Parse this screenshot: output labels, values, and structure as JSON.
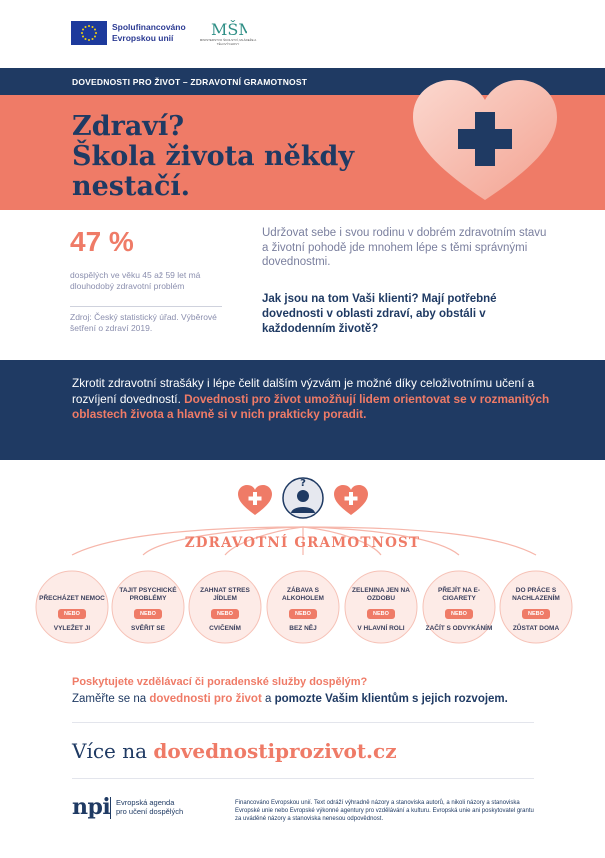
{
  "header": {
    "eu_line1": "Spolufinancováno",
    "eu_line2": "Evropskou unií",
    "msmt_text": "MŠMT",
    "msmt_subtitle": "MINISTERSTVO ŠKOLSTVÍ, MLÁDEŽE A TĚLOVÝCHOVY",
    "band_title": "DOVEDNOSTI PRO ŽIVOT – ZDRAVOTNÍ GRAMOTNOST"
  },
  "hero": {
    "title_line1": "Zdraví?",
    "title_line2": "Škola života někdy",
    "title_line3": "nestačí."
  },
  "stats": {
    "value": "47 %",
    "description": "dospělých ve věku 45 až 59 let má dlouhodobý zdravotní problém",
    "source": "Zdroj: Český statistický úřad. Výběrové šetření o zdraví 2019.",
    "intro": "Udržovat sebe i svou rodinu v dobrém zdravotním stavu a životní pohodě jde mnohem lépe s těmi správnými dovednostmi.",
    "question": "Jak jsou na tom Vaši klienti? Mají potřebné dovednosti v oblasti zdraví, aby obstáli v každodenním životě?"
  },
  "navy_band": {
    "text_plain": "Zkrotit zdravotní strašáky i lépe čelit dalším výzvám je možné díky celoživotnímu učení a rozvíjení dovedností. ",
    "text_highlight": "Dovednosti pro život umožňují lidem orientovat se v rozmanitých oblastech života a hlavně si v nich prakticky poradit."
  },
  "diagram": {
    "title": "ZDRAVOTNÍ GRAMOTNOST",
    "or_label": "NEBO",
    "items": [
      {
        "top": "PŘECHÁZET NEMOC",
        "bottom": "VYLEŽET JI"
      },
      {
        "top": "TAJIT PSYCHICKÉ PROBLÉMY",
        "bottom": "SVĚŘIT SE"
      },
      {
        "top": "ZAHNAT STRES JÍDLEM",
        "bottom": "CVIČENÍM"
      },
      {
        "top": "ZÁBAVA S ALKOHOLEM",
        "bottom": "BEZ NĚJ"
      },
      {
        "top": "ZELENINA JEN NA OZDOBU",
        "bottom": "V HLAVNÍ ROLI"
      },
      {
        "top": "PŘEJÍT NA E-CIGARETY",
        "bottom": "ZAČÍT S ODVYKÁNÍM"
      },
      {
        "top": "DO PRÁCE S NACHLAZENÍM",
        "bottom": "ZŮSTAT DOMA"
      }
    ]
  },
  "cta": {
    "question": "Poskytujete vzdělávací či poradenské služby dospělým?",
    "line_part1": "Zaměřte se na ",
    "line_highlight": "dovednosti pro život",
    "line_part2": " a ",
    "line_bold": "pomozte Vašim klientům s jejich rozvojem."
  },
  "more": {
    "label": "Více na ",
    "link": "dovednostiprozivot.cz"
  },
  "footer": {
    "npi": "npi",
    "npi_line1": "Evropská agenda",
    "npi_line2": "pro učení dospělých",
    "disclaimer": "Financováno Evropskou unií. Text odráží výhradně názory a stanoviska autorů, a nikoli názory a stanoviska Evropské unie nebo Evropské výkonné agentury pro vzdělávání a kulturu. Evropská unie ani poskytovatel grantu za uváděné názory a stanoviska nenesou odpovědnost."
  },
  "colors": {
    "navy": "#1f3a63",
    "salmon": "#ef7b67",
    "gray_text": "#8b8fae"
  }
}
